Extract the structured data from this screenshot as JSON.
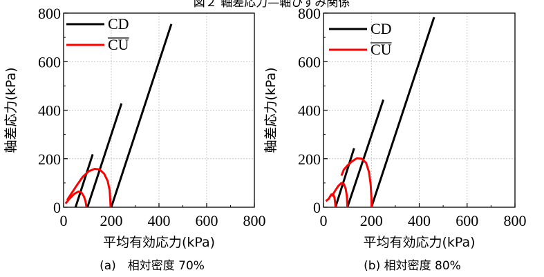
{
  "header": "図２ 軸差応力—軸ひずみ関係",
  "colors": {
    "cd": "#000000",
    "cu": "#ff0000",
    "grid": "#c8c8c8"
  },
  "chart_data": [
    {
      "type": "line",
      "caption": "(a)　相対密度 70%",
      "xlabel": "平均有効応力(kPa)",
      "ylabel": "軸差応力(kPa)",
      "xlim": [
        0,
        800
      ],
      "ylim": [
        0,
        800
      ],
      "xticks": [
        0,
        200,
        400,
        600,
        800
      ],
      "yticks": [
        0,
        200,
        400,
        600,
        800
      ],
      "grid": true,
      "legend_position": "top-left",
      "legend": [
        "CD",
        "CU"
      ],
      "series": [
        {
          "name": "CD",
          "group": "CD",
          "points": [
            [
              50,
              0
            ],
            [
              122,
              218
            ]
          ]
        },
        {
          "name": "CD",
          "group": "CD",
          "points": [
            [
              100,
              0
            ],
            [
              243,
              428
            ]
          ]
        },
        {
          "name": "CD",
          "group": "CD",
          "points": [
            [
              200,
              0
            ],
            [
              452,
              755
            ]
          ]
        },
        {
          "name": "CU",
          "group": "CU",
          "points": [
            [
              8,
              15
            ],
            [
              25,
              35
            ],
            [
              45,
              55
            ],
            [
              62,
              65
            ],
            [
              75,
              60
            ],
            [
              85,
              45
            ],
            [
              92,
              25
            ],
            [
              96,
              0
            ]
          ]
        },
        {
          "name": "CU",
          "group": "CU",
          "points": [
            [
              15,
              30
            ],
            [
              35,
              60
            ],
            [
              55,
              90
            ],
            [
              80,
              125
            ],
            [
              105,
              148
            ],
            [
              130,
              158
            ],
            [
              150,
              156
            ],
            [
              170,
              138
            ],
            [
              185,
              108
            ],
            [
              193,
              70
            ],
            [
              196,
              25
            ],
            [
              197,
              0
            ]
          ]
        }
      ]
    },
    {
      "type": "line",
      "caption": "(b) 相対密度 80%",
      "xlabel": "平均有効応力(kPa)",
      "ylabel": "軸差応力(kPa)",
      "xlim": [
        0,
        800
      ],
      "ylim": [
        0,
        800
      ],
      "xticks": [
        0,
        200,
        400,
        600,
        800
      ],
      "yticks": [
        0,
        200,
        400,
        600,
        800
      ],
      "grid": true,
      "legend_position": "top-left",
      "legend": [
        "CD",
        "CU"
      ],
      "series": [
        {
          "name": "CD",
          "group": "CD",
          "points": [
            [
              50,
              0
            ],
            [
              128,
              243
            ]
          ]
        },
        {
          "name": "CD",
          "group": "CD",
          "points": [
            [
              100,
              0
            ],
            [
              250,
              443
            ]
          ]
        },
        {
          "name": "CD",
          "group": "CD",
          "points": [
            [
              200,
              0
            ],
            [
              462,
              783
            ]
          ]
        },
        {
          "name": "CU",
          "group": "CU",
          "points": [
            [
              10,
              25
            ],
            [
              22,
              35
            ],
            [
              32,
              52
            ],
            [
              40,
              55
            ],
            [
              46,
              40
            ],
            [
              49,
              15
            ],
            [
              50,
              0
            ]
          ]
        },
        {
          "name": "CU",
          "group": "CU",
          "points": [
            [
              35,
              45
            ],
            [
              50,
              70
            ],
            [
              62,
              88
            ],
            [
              75,
              100
            ],
            [
              85,
              96
            ],
            [
              93,
              75
            ],
            [
              98,
              45
            ],
            [
              100,
              0
            ]
          ]
        },
        {
          "name": "CU",
          "group": "CU",
          "points": [
            [
              75,
              130
            ],
            [
              85,
              155
            ],
            [
              100,
              172
            ],
            [
              120,
              190
            ],
            [
              140,
              202
            ],
            [
              160,
              200
            ],
            [
              178,
              183
            ],
            [
              190,
              145
            ],
            [
              197,
              95
            ],
            [
              200,
              40
            ],
            [
              201,
              0
            ]
          ]
        }
      ]
    }
  ]
}
